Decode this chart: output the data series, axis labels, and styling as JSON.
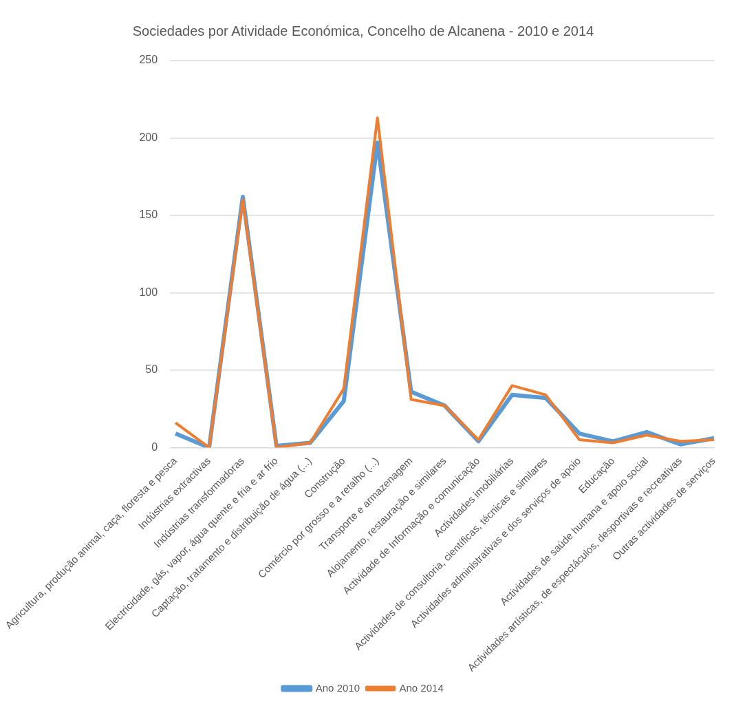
{
  "chart_data": {
    "type": "line",
    "title": "Sociedades por Atividade Económica, Concelho de Alcanena - 2010 e 2014",
    "categories": [
      "Agricultura, produção animal, caça, floresta e pesca",
      "Indústrias extractivas",
      "Indústrias transformadoras",
      "Electricidade, gás, vapor, água quente e fria e ar frio",
      "Captação, tratamento e distribuição de água (...)",
      "Construção",
      "Comércio por grosso e a retalho (...)",
      "Transporte e armazenagem",
      "Alojamento, restauração e similares",
      "Actividade de Informação e comunicação",
      "Actividades imobiliárias",
      "Actividades de consultoria, científicas, técnicas e similares",
      "Actividades administrativas e dos serviços de apoio",
      "Educação",
      "Actividades de saúde humana e apoio social",
      "Actividades artísticas, de espectáculos, desportivas e recreativas",
      "Outras actividades de serviços"
    ],
    "series": [
      {
        "name": "Ano 2010",
        "color": "#5b9bd5",
        "values": [
          9,
          0,
          162,
          1,
          3,
          30,
          197,
          36,
          27,
          4,
          34,
          32,
          9,
          4,
          10,
          2,
          6
        ]
      },
      {
        "name": "Ano 2014",
        "color": "#ed7d31",
        "values": [
          16,
          0,
          160,
          0,
          3,
          38,
          213,
          31,
          27,
          5,
          40,
          34,
          5,
          3,
          8,
          4,
          5
        ]
      }
    ],
    "ylim": [
      0,
      250
    ],
    "yticks": [
      0,
      50,
      100,
      150,
      200,
      250
    ],
    "grid": "y",
    "legend": "bottom",
    "marker": "none",
    "line_style": "solid"
  }
}
